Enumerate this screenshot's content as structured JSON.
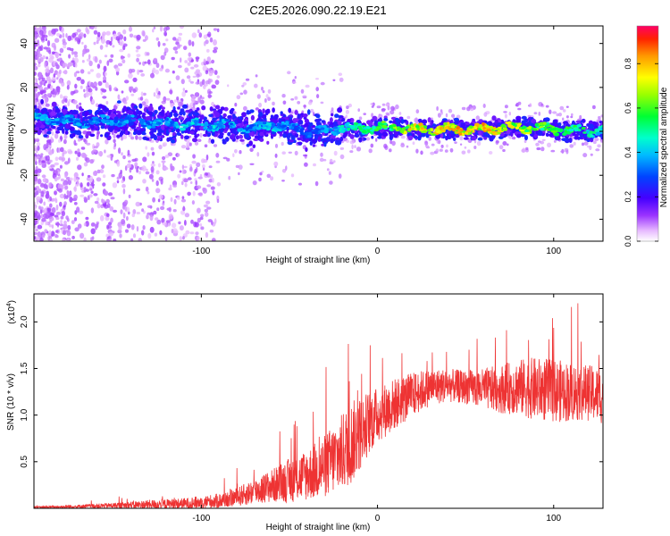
{
  "title": "C2E5.2026.090.22.19.E21",
  "chart_data": [
    {
      "type": "heatmap",
      "title": "C2E5.2026.090.22.19.E21",
      "xlabel": "Height of straight line (km)",
      "ylabel": "Frequency (Hz)",
      "xlim": [
        -195,
        128
      ],
      "ylim": [
        -50,
        48
      ],
      "x_ticks": [
        -100,
        0,
        100
      ],
      "x_tick_labels": [
        "-100",
        "0",
        "100"
      ],
      "y_ticks": [
        -40,
        -20,
        0,
        20,
        40
      ],
      "y_tick_labels": [
        "-40",
        "-20",
        "0",
        "20",
        "40"
      ],
      "colorbar": {
        "label": "Normalized spectral amplitude",
        "range": [
          0.0,
          0.97
        ],
        "ticks": [
          0.0,
          0.2,
          0.4,
          0.6,
          0.8
        ],
        "tick_labels": [
          "0.0",
          "0.2",
          "0.4",
          "0.6",
          "0.8"
        ]
      },
      "ridge": {
        "x": [
          -190,
          -170,
          -150,
          -130,
          -110,
          -90,
          -70,
          -60,
          -50,
          -40,
          -30,
          -20,
          -10,
          0,
          20,
          40,
          60,
          80,
          100,
          120,
          128
        ],
        "freq": [
          6,
          4,
          5,
          4,
          3,
          3,
          1,
          3,
          2,
          0,
          0,
          2,
          1,
          2,
          1,
          1,
          1,
          2,
          1,
          0,
          0
        ],
        "amplitude": [
          0.45,
          0.4,
          0.4,
          0.4,
          0.45,
          0.45,
          0.4,
          0.45,
          0.4,
          0.35,
          0.4,
          0.5,
          0.55,
          0.6,
          0.8,
          0.85,
          0.85,
          0.75,
          0.65,
          0.55,
          0.5
        ]
      }
    },
    {
      "type": "line",
      "xlabel": "Height of straight line (km)",
      "ylabel": "SNR (10 * v/v)",
      "y_scale_label": "(x10",
      "y_scale_exp": "4",
      "xlim": [
        -195,
        128
      ],
      "ylim": [
        0.0,
        2.3
      ],
      "x_ticks": [
        -100,
        0,
        100
      ],
      "x_tick_labels": [
        "-100",
        "0",
        "100"
      ],
      "y_ticks": [
        0.5,
        1.0,
        1.5,
        2.0
      ],
      "y_tick_labels": [
        "0.5",
        "1.0",
        "1.5",
        "2.0"
      ],
      "series": [
        {
          "name": "SNR",
          "color": "#ee3333",
          "x": [
            -195,
            -170,
            -150,
            -130,
            -110,
            -90,
            -80,
            -70,
            -60,
            -50,
            -40,
            -30,
            -20,
            -15,
            -10,
            -5,
            0,
            10,
            20,
            30,
            40,
            50,
            60,
            70,
            80,
            90,
            100,
            110,
            120,
            128
          ],
          "baseline": [
            0.01,
            0.02,
            0.03,
            0.04,
            0.05,
            0.08,
            0.12,
            0.18,
            0.24,
            0.3,
            0.36,
            0.45,
            0.6,
            0.7,
            0.8,
            0.92,
            1.0,
            1.12,
            1.22,
            1.3,
            1.32,
            1.3,
            1.28,
            1.28,
            1.3,
            1.28,
            1.26,
            1.25,
            1.24,
            1.2
          ],
          "spread": [
            0.01,
            0.02,
            0.03,
            0.05,
            0.06,
            0.08,
            0.1,
            0.14,
            0.18,
            0.24,
            0.28,
            0.34,
            0.42,
            0.45,
            0.4,
            0.34,
            0.3,
            0.28,
            0.24,
            0.2,
            0.18,
            0.18,
            0.22,
            0.26,
            0.3,
            0.34,
            0.34,
            0.32,
            0.3,
            0.3
          ]
        }
      ]
    }
  ]
}
